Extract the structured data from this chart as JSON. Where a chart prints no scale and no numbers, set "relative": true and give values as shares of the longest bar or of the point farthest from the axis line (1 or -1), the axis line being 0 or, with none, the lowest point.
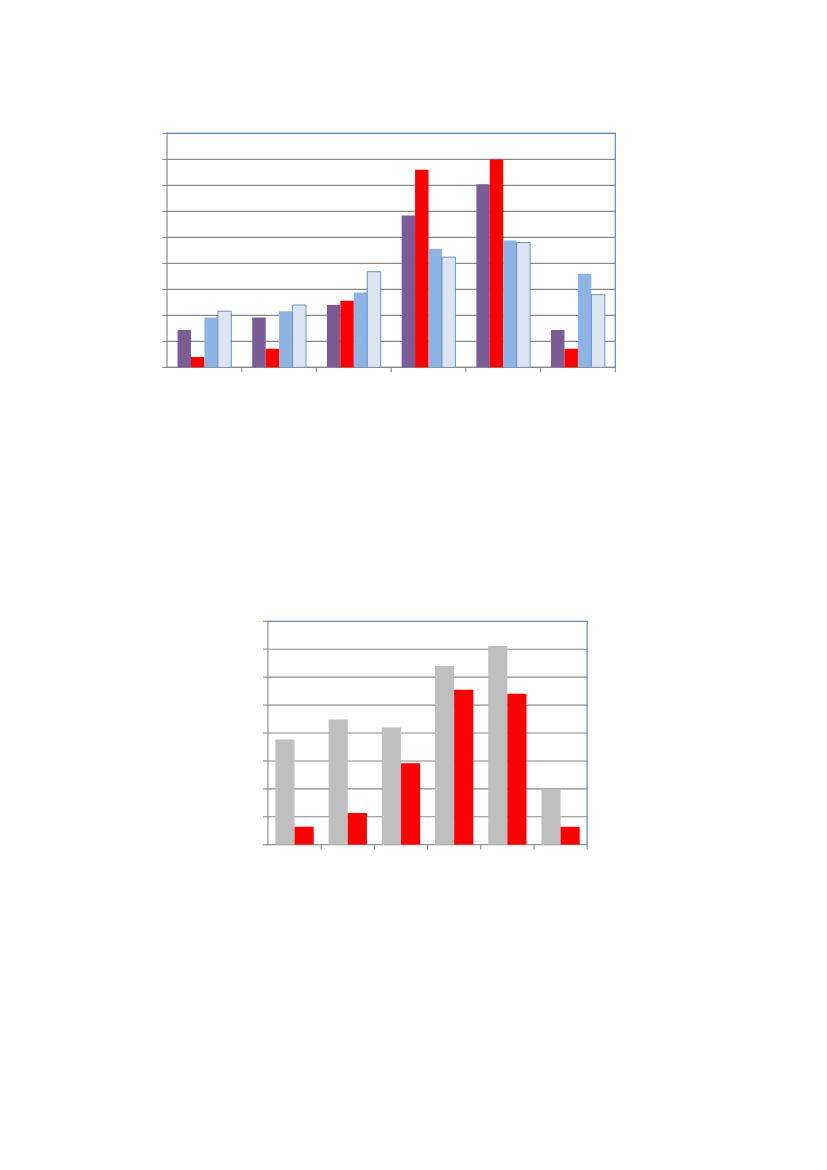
{
  "chart_data": [
    {
      "type": "bar",
      "relative": true,
      "grid": "y",
      "categories": [
        null,
        null,
        null,
        null,
        null,
        null
      ],
      "series": [
        {
          "color": "#7b5c96",
          "values": [
            0.18,
            0.24,
            0.3,
            0.73,
            0.88,
            0.18
          ]
        },
        {
          "color": "#ff0000",
          "values": [
            0.05,
            0.09,
            0.32,
            0.95,
            1.0,
            0.09
          ]
        },
        {
          "color": "#8db4e2",
          "values": [
            0.24,
            0.27,
            0.36,
            0.57,
            0.61,
            0.45
          ]
        },
        {
          "color": "#dce6f2",
          "values": [
            0.27,
            0.3,
            0.46,
            0.53,
            0.6,
            0.35
          ]
        }
      ]
    },
    {
      "type": "bar",
      "relative": true,
      "grid": "y",
      "categories": [
        null,
        null,
        null,
        null,
        null,
        null
      ],
      "series": [
        {
          "color": "#bfbfbf",
          "values": [
            0.53,
            0.63,
            0.59,
            0.9,
            1.0,
            0.28
          ]
        },
        {
          "color": "#ff0000",
          "values": [
            0.09,
            0.16,
            0.41,
            0.78,
            0.76,
            0.09
          ]
        }
      ]
    }
  ]
}
